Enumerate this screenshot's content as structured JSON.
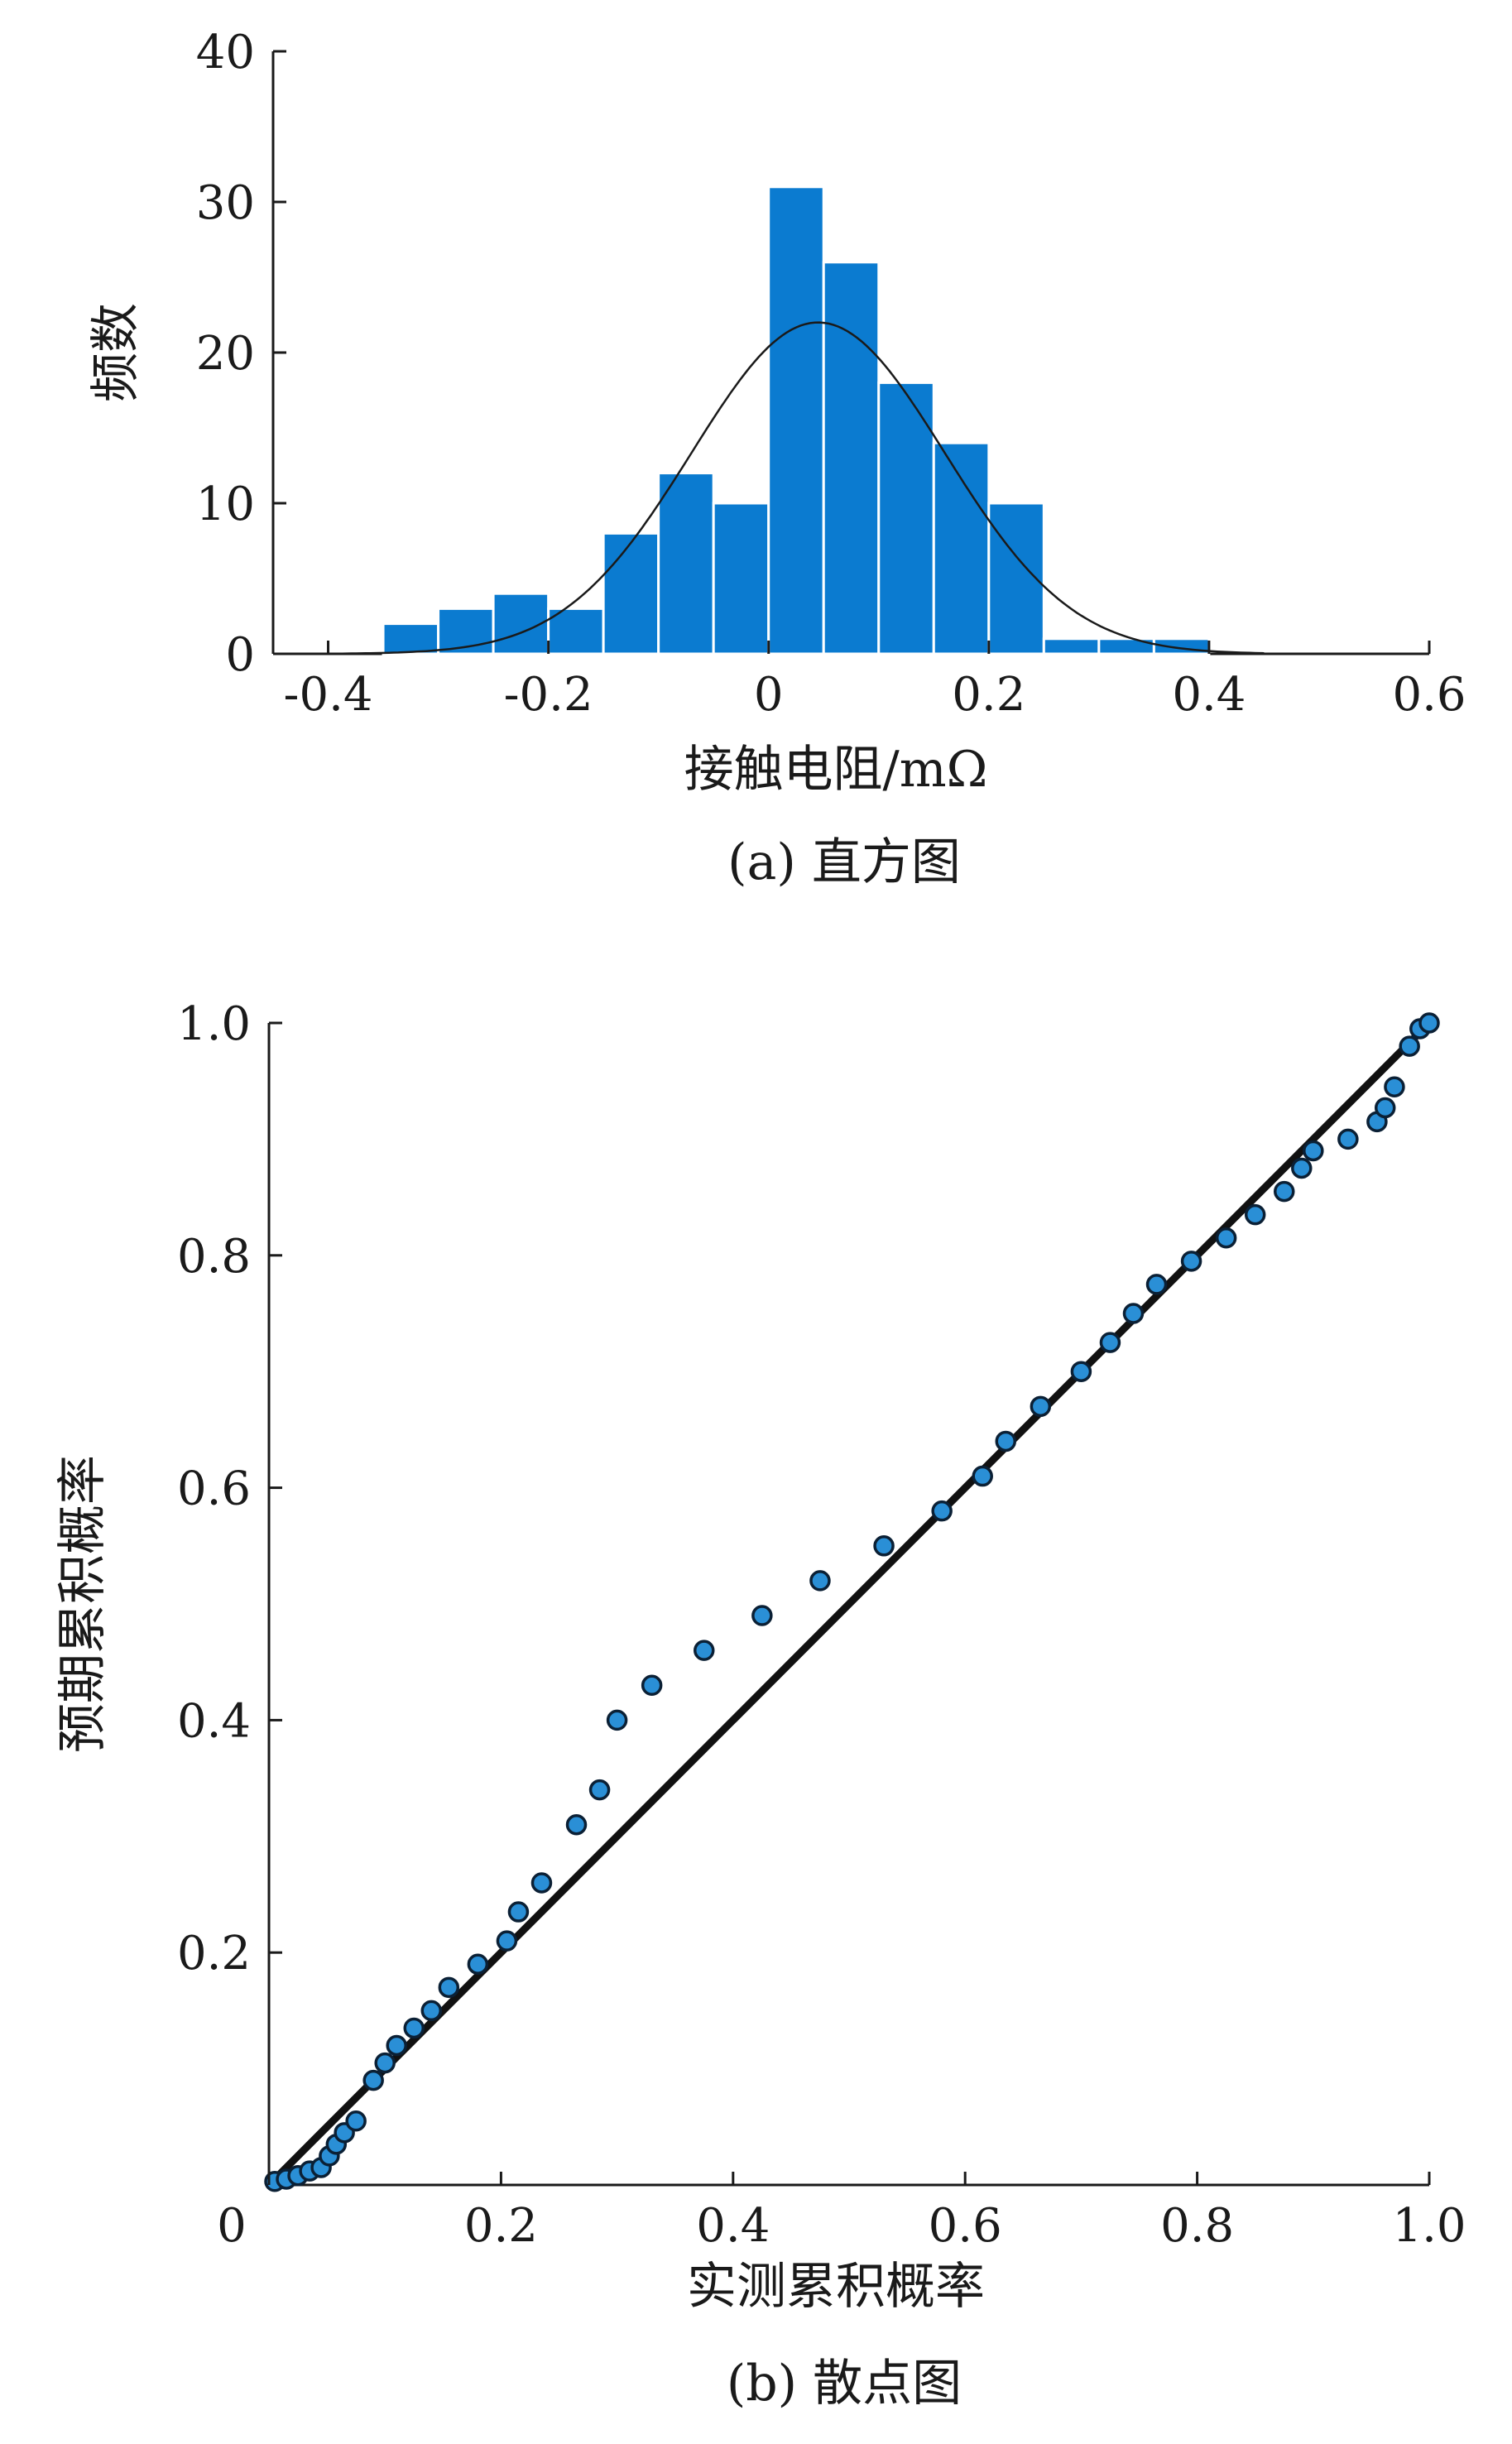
{
  "chart_data": [
    {
      "type": "bar",
      "subtype": "histogram",
      "caption": "(a) 直方图",
      "xlabel": "接触电阻/mΩ",
      "ylabel": "频数",
      "xlim": [
        -0.45,
        0.6
      ],
      "ylim": [
        0,
        40
      ],
      "xticks": [
        -0.4,
        -0.2,
        0,
        0.2,
        0.4,
        0.6
      ],
      "xtick_labels": [
        "-0.4",
        "-0.2",
        "0",
        "0.2",
        "0.4",
        "0.6"
      ],
      "yticks": [
        0,
        10,
        20,
        30,
        40
      ],
      "ytick_labels": [
        "0",
        "10",
        "20",
        "30",
        "40"
      ],
      "bins": [
        {
          "x0": -0.35,
          "x1": -0.3,
          "count": 2
        },
        {
          "x0": -0.3,
          "x1": -0.25,
          "count": 3
        },
        {
          "x0": -0.25,
          "x1": -0.2,
          "count": 4
        },
        {
          "x0": -0.2,
          "x1": -0.15,
          "count": 3
        },
        {
          "x0": -0.15,
          "x1": -0.1,
          "count": 8
        },
        {
          "x0": -0.1,
          "x1": -0.05,
          "count": 12
        },
        {
          "x0": -0.05,
          "x1": 0.0,
          "count": 10
        },
        {
          "x0": 0.0,
          "x1": 0.05,
          "count": 31
        },
        {
          "x0": 0.05,
          "x1": 0.1,
          "count": 26
        },
        {
          "x0": 0.1,
          "x1": 0.15,
          "count": 18
        },
        {
          "x0": 0.15,
          "x1": 0.2,
          "count": 14
        },
        {
          "x0": 0.2,
          "x1": 0.25,
          "count": 10
        },
        {
          "x0": 0.25,
          "x1": 0.3,
          "count": 1
        },
        {
          "x0": 0.3,
          "x1": 0.35,
          "count": 1
        },
        {
          "x0": 0.35,
          "x1": 0.4,
          "count": 1
        }
      ],
      "normal_fit": {
        "mean": 0.045,
        "sd": 0.115,
        "peak": 22,
        "x_range": [
          -0.4,
          0.45
        ]
      },
      "colors": {
        "bar": "#0b7bd0",
        "curve": "#1a1a1a"
      },
      "grid": false
    },
    {
      "type": "scatter",
      "subtype": "P-P plot",
      "caption": "(b) 散点图",
      "xlabel": "实测累积概率",
      "ylabel": "预期累积概率",
      "xlim": [
        0,
        1.0
      ],
      "ylim": [
        0,
        1.0
      ],
      "xticks": [
        0,
        0.2,
        0.4,
        0.6,
        0.8,
        1.0
      ],
      "xtick_labels": [
        "0",
        "0.2",
        "0.4",
        "0.6",
        "0.8",
        "1.0"
      ],
      "yticks": [
        0.2,
        0.4,
        0.6,
        0.8,
        1.0
      ],
      "ytick_labels": [
        "0.2",
        "0.4",
        "0.6",
        "0.8",
        "1.0"
      ],
      "reference_line": [
        [
          0,
          0
        ],
        [
          1.0,
          1.0
        ]
      ],
      "points": [
        [
          0.005,
          0.003
        ],
        [
          0.015,
          0.005
        ],
        [
          0.025,
          0.008
        ],
        [
          0.035,
          0.012
        ],
        [
          0.045,
          0.015
        ],
        [
          0.052,
          0.025
        ],
        [
          0.058,
          0.035
        ],
        [
          0.065,
          0.045
        ],
        [
          0.075,
          0.055
        ],
        [
          0.09,
          0.09
        ],
        [
          0.1,
          0.105
        ],
        [
          0.11,
          0.12
        ],
        [
          0.125,
          0.135
        ],
        [
          0.14,
          0.15
        ],
        [
          0.155,
          0.17
        ],
        [
          0.18,
          0.19
        ],
        [
          0.205,
          0.21
        ],
        [
          0.215,
          0.235
        ],
        [
          0.235,
          0.26
        ],
        [
          0.265,
          0.31
        ],
        [
          0.285,
          0.34
        ],
        [
          0.3,
          0.4
        ],
        [
          0.33,
          0.43
        ],
        [
          0.375,
          0.46
        ],
        [
          0.425,
          0.49
        ],
        [
          0.475,
          0.52
        ],
        [
          0.53,
          0.55
        ],
        [
          0.58,
          0.58
        ],
        [
          0.615,
          0.61
        ],
        [
          0.635,
          0.64
        ],
        [
          0.665,
          0.67
        ],
        [
          0.7,
          0.7
        ],
        [
          0.725,
          0.725
        ],
        [
          0.745,
          0.75
        ],
        [
          0.765,
          0.775
        ],
        [
          0.795,
          0.795
        ],
        [
          0.825,
          0.815
        ],
        [
          0.85,
          0.835
        ],
        [
          0.875,
          0.855
        ],
        [
          0.89,
          0.875
        ],
        [
          0.9,
          0.89
        ],
        [
          0.93,
          0.9
        ],
        [
          0.955,
          0.915
        ],
        [
          0.962,
          0.927
        ],
        [
          0.97,
          0.945
        ],
        [
          0.983,
          0.98
        ],
        [
          0.992,
          0.995
        ],
        [
          1.0,
          1.0
        ]
      ],
      "colors": {
        "point_fill": "#2a8fd6",
        "point_edge": "#0b2035",
        "line": "#111111"
      },
      "grid": false
    }
  ]
}
